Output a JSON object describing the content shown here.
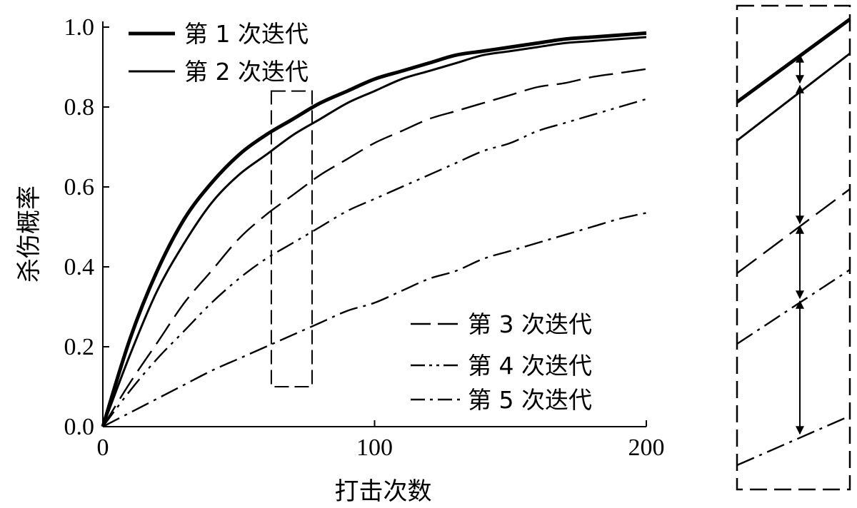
{
  "chart_data": {
    "type": "line",
    "title": "",
    "xlabel": "打击次数",
    "ylabel": "杀伤概率",
    "xlim": [
      0,
      200
    ],
    "ylim": [
      0,
      1.0
    ],
    "xticks": [
      0,
      100,
      200
    ],
    "xtick_labels": [
      "0",
      "100",
      "200"
    ],
    "yticks": [
      0,
      0.2,
      0.4,
      0.6,
      0.8,
      1.0
    ],
    "ytick_labels": [
      "0.0",
      "0.2",
      "0.4",
      "0.6",
      "0.8",
      "1.0"
    ],
    "grid": false,
    "x": [
      0,
      10,
      20,
      30,
      40,
      50,
      60,
      70,
      80,
      90,
      100,
      110,
      120,
      130,
      140,
      150,
      160,
      170,
      180,
      190,
      200
    ],
    "series": [
      {
        "name": "第 1 次迭代",
        "style": "thick-solid",
        "values": [
          0,
          0.22,
          0.39,
          0.52,
          0.61,
          0.68,
          0.73,
          0.77,
          0.81,
          0.84,
          0.87,
          0.89,
          0.91,
          0.93,
          0.94,
          0.95,
          0.96,
          0.97,
          0.975,
          0.98,
          0.985
        ]
      },
      {
        "name": "第 2 次迭代",
        "style": "solid",
        "values": [
          0,
          0.18,
          0.34,
          0.46,
          0.56,
          0.63,
          0.68,
          0.73,
          0.77,
          0.81,
          0.84,
          0.87,
          0.89,
          0.91,
          0.93,
          0.94,
          0.95,
          0.96,
          0.965,
          0.97,
          0.975
        ]
      },
      {
        "name": "第 3 次迭代",
        "style": "dashed",
        "values": [
          0,
          0.11,
          0.21,
          0.31,
          0.39,
          0.47,
          0.53,
          0.58,
          0.63,
          0.67,
          0.71,
          0.74,
          0.77,
          0.79,
          0.81,
          0.83,
          0.85,
          0.86,
          0.875,
          0.885,
          0.895
        ]
      },
      {
        "name": "第 4 次迭代",
        "style": "dash-dot-dot",
        "values": [
          0,
          0.09,
          0.17,
          0.24,
          0.31,
          0.37,
          0.42,
          0.46,
          0.5,
          0.54,
          0.57,
          0.6,
          0.63,
          0.66,
          0.69,
          0.71,
          0.74,
          0.76,
          0.78,
          0.8,
          0.82
        ]
      },
      {
        "name": "第 5 次迭代",
        "style": "dash-dot",
        "values": [
          0,
          0.035,
          0.07,
          0.105,
          0.14,
          0.17,
          0.2,
          0.23,
          0.26,
          0.29,
          0.31,
          0.34,
          0.37,
          0.39,
          0.42,
          0.44,
          0.46,
          0.48,
          0.5,
          0.52,
          0.535
        ]
      }
    ],
    "legend": [
      {
        "label": "第 1 次迭代",
        "style": "thick-solid",
        "placement": "top-left"
      },
      {
        "label": "第 2 次迭代",
        "style": "solid",
        "placement": "top-left"
      },
      {
        "label": "第 3 次迭代",
        "style": "dashed",
        "placement": "bottom-right"
      },
      {
        "label": "第 4 次迭代",
        "style": "dash-dot-dot",
        "placement": "bottom-right"
      },
      {
        "label": "第 5 次迭代",
        "style": "dash-dot",
        "placement": "bottom-right"
      }
    ],
    "highlight_box": {
      "x_range": [
        62,
        77
      ],
      "y_range": [
        0.1,
        0.84
      ],
      "style": "dashed"
    },
    "inset": {
      "description_free": true,
      "style": "dashed-border",
      "arrows_between_series": true
    }
  }
}
